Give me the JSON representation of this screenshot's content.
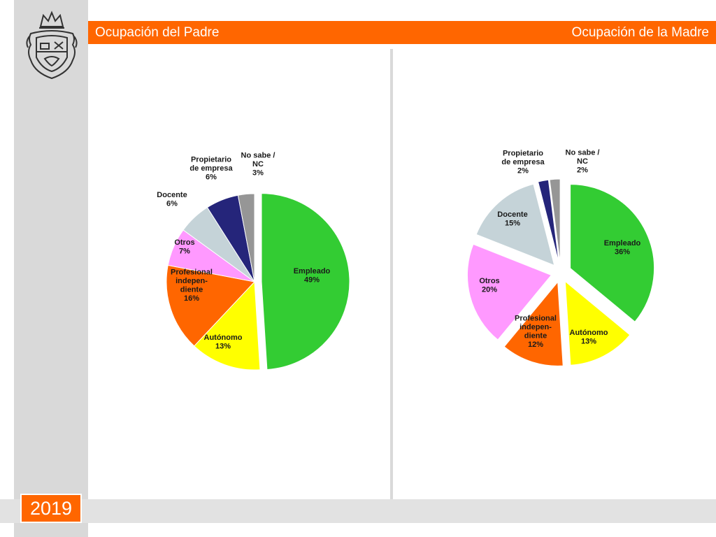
{
  "header": {
    "left_title": "Ocupación del Padre",
    "right_title": "Ocupación de la Madre"
  },
  "footer": {
    "year": "2019"
  },
  "icons": {
    "logo": "university-coat-of-arms-icon"
  },
  "chart_data": [
    {
      "type": "pie",
      "title": "Ocupación del Padre",
      "slices": [
        {
          "label": [
            "Empleado"
          ],
          "value": 49,
          "pct": "49%",
          "color": "#33cc33"
        },
        {
          "label": [
            "Autónomo"
          ],
          "value": 13,
          "pct": "13%",
          "color": "#ffff00"
        },
        {
          "label": [
            "Profesional",
            "indepen-",
            "diente"
          ],
          "value": 16,
          "pct": "16%",
          "color": "#ff6600"
        },
        {
          "label": [
            "Otros"
          ],
          "value": 7,
          "pct": "7%",
          "color": "#ff99ff"
        },
        {
          "label": [
            "Docente"
          ],
          "value": 6,
          "pct": "6%",
          "color": "#c5d3d8"
        },
        {
          "label": [
            "Propietario",
            "de empresa"
          ],
          "value": 6,
          "pct": "6%",
          "color": "#25257a"
        },
        {
          "label": [
            "No sabe /",
            "NC"
          ],
          "value": 3,
          "pct": "3%",
          "color": "#969696"
        }
      ]
    },
    {
      "type": "pie",
      "title": "Ocupación de la Madre",
      "slices": [
        {
          "label": [
            "Empleado"
          ],
          "value": 36,
          "pct": "36%",
          "color": "#33cc33"
        },
        {
          "label": [
            "Autónomo"
          ],
          "value": 13,
          "pct": "13%",
          "color": "#ffff00"
        },
        {
          "label": [
            "Profesional",
            "indepen-",
            "diente"
          ],
          "value": 12,
          "pct": "12%",
          "color": "#ff6600"
        },
        {
          "label": [
            "Otros"
          ],
          "value": 20,
          "pct": "20%",
          "color": "#ff99ff"
        },
        {
          "label": [
            "Docente"
          ],
          "value": 15,
          "pct": "15%",
          "color": "#c5d3d8"
        },
        {
          "label": [
            "Propietario",
            "de empresa"
          ],
          "value": 2,
          "pct": "2%",
          "color": "#25257a"
        },
        {
          "label": [
            "No sabe /",
            "NC"
          ],
          "value": 2,
          "pct": "2%",
          "color": "#969696"
        }
      ]
    }
  ]
}
